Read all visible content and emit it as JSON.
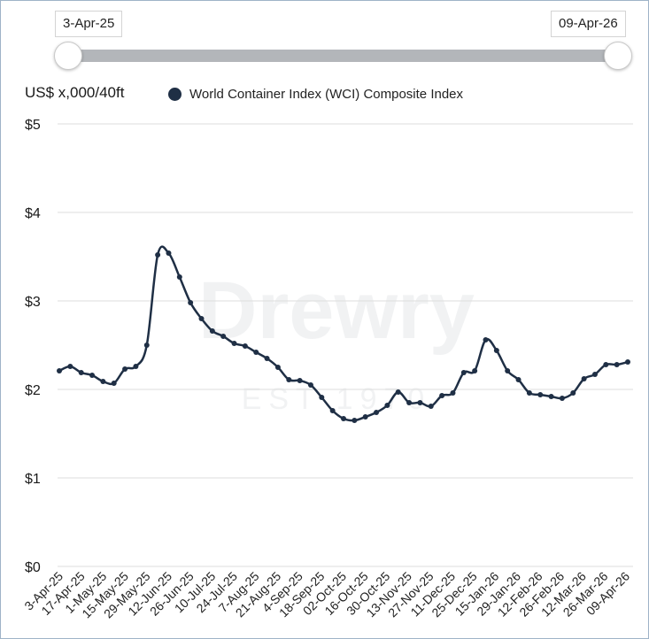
{
  "range_slider": {
    "start_label": "3-Apr-25",
    "end_label": "09-Apr-26"
  },
  "colors": {
    "line": "#1f2f45",
    "grid": "#dddddd",
    "track": "#b3b6ba",
    "watermark": "#d5d8dc"
  },
  "watermark": {
    "brand": "Drewry",
    "tagline": "EST 1970"
  },
  "chart_data": {
    "type": "line",
    "title": "",
    "ylabel": "US$ x,000/40ft",
    "ylim": [
      0,
      5
    ],
    "y_ticks": [
      "$0",
      "$1",
      "$2",
      "$3",
      "$4",
      "$5"
    ],
    "legend_position": "top",
    "x_tick_labels": [
      "3-Apr-25",
      "17-Apr-25",
      "1-May-25",
      "15-May-25",
      "29-May-25",
      "12-Jun-25",
      "26-Jun-25",
      "10-Jul-25",
      "24-Jul-25",
      "7-Aug-25",
      "21-Aug-25",
      "4-Sep-25",
      "18-Sep-25",
      "02-Oct-25",
      "16-Oct-25",
      "30-Oct-25",
      "13-Nov-25",
      "27-Nov-25",
      "11-Dec-25",
      "25-Dec-25",
      "15-Jan-26",
      "29-Jan-26",
      "12-Feb-26",
      "26-Feb-26",
      "12-Mar-26",
      "26-Mar-26",
      "09-Apr-26"
    ],
    "series": [
      {
        "name": "World Container Index (WCI) Composite Index",
        "values": [
          2.21,
          2.26,
          2.19,
          2.16,
          2.09,
          2.07,
          2.23,
          2.26,
          2.5,
          3.52,
          3.54,
          3.27,
          2.98,
          2.8,
          2.66,
          2.6,
          2.52,
          2.49,
          2.42,
          2.35,
          2.25,
          2.11,
          2.1,
          2.05,
          1.91,
          1.76,
          1.67,
          1.65,
          1.69,
          1.74,
          1.82,
          1.97,
          1.85,
          1.85,
          1.81,
          1.93,
          1.96,
          2.19,
          2.21,
          2.56,
          2.44,
          2.21,
          2.11,
          1.96,
          1.94,
          1.92,
          1.9,
          1.96,
          2.12,
          2.17,
          2.28,
          2.28,
          2.31
        ]
      }
    ]
  }
}
